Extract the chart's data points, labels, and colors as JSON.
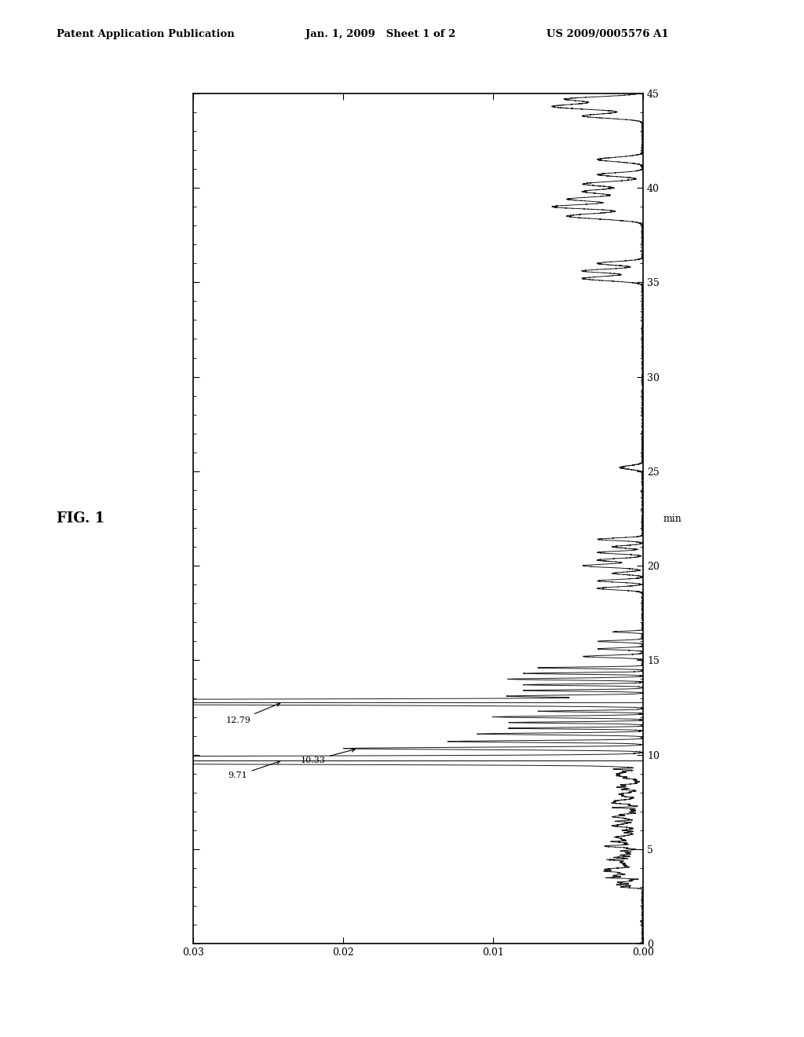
{
  "header_left": "Patent Application Publication",
  "header_mid": "Jan. 1, 2009   Sheet 1 of 2",
  "header_right": "US 2009/0005576 A1",
  "fig_label": "FIG. 1",
  "time_label": "min",
  "xmin": 0,
  "xmax": 45,
  "ymin": 0.0,
  "ymax": 0.03,
  "yticks": [
    0.0,
    0.01,
    0.02,
    0.03
  ],
  "xticks": [
    0,
    5,
    10,
    15,
    20,
    25,
    30,
    35,
    40,
    45
  ],
  "annotation_1279": "12.79",
  "annotation_971": "9.71",
  "annotation_1033": "10.33",
  "line_color": "#1a1a1a",
  "background_color": "#ffffff"
}
